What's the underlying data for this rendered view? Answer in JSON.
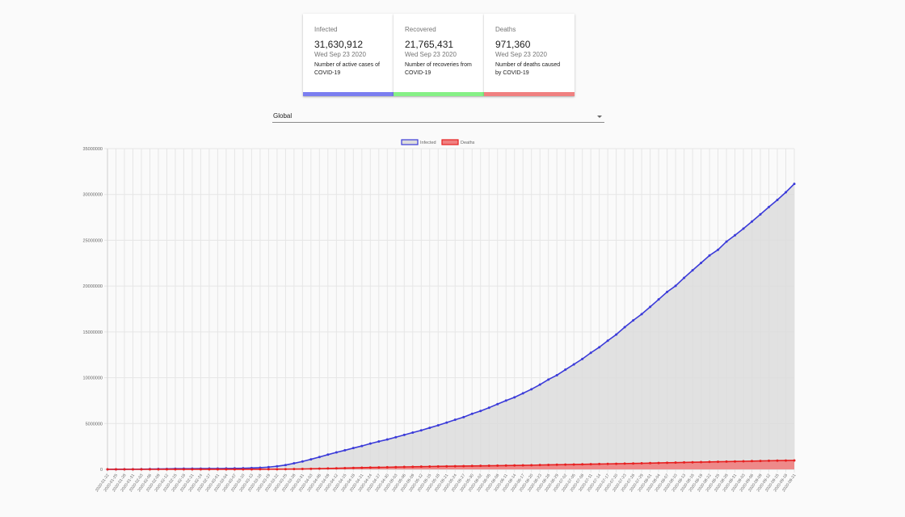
{
  "cards": [
    {
      "label": "Infected",
      "value": "31,630,912",
      "date": "Wed Sep 23 2020",
      "desc": "Number of active cases of COVID-19",
      "color": "#7b7ef0"
    },
    {
      "label": "Recovered",
      "value": "21,765,431",
      "date": "Wed Sep 23 2020",
      "desc": "Number of recoveries from COVID-19",
      "color": "#86f086"
    },
    {
      "label": "Deaths",
      "value": "971,360",
      "date": "Wed Sep 23 2020",
      "desc": "Number of deaths caused by COVID-19",
      "color": "#f08080"
    }
  ],
  "country_select": {
    "value": "Global",
    "icon": "chevron-down-icon"
  },
  "chart_data": {
    "type": "line",
    "title": "",
    "xlabel": "",
    "ylabel": "",
    "ylim": [
      0,
      35000000
    ],
    "y_ticks": [
      "0",
      "5000000",
      "10000000",
      "15000000",
      "20000000",
      "25000000",
      "30000000",
      "35000000"
    ],
    "x_ticks": [
      "2020-01-22",
      "2020-01-25",
      "2020-01-28",
      "2020-01-31",
      "2020-02-03",
      "2020-02-06",
      "2020-02-09",
      "2020-02-12",
      "2020-02-15",
      "2020-02-18",
      "2020-02-21",
      "2020-02-24",
      "2020-02-27",
      "2020-03-01",
      "2020-03-04",
      "2020-03-07",
      "2020-03-10",
      "2020-03-13",
      "2020-03-16",
      "2020-03-19",
      "2020-03-22",
      "2020-03-25",
      "2020-03-28",
      "2020-03-31",
      "2020-04-03",
      "2020-04-06",
      "2020-04-09",
      "2020-04-12",
      "2020-04-15",
      "2020-04-18",
      "2020-04-21",
      "2020-04-24",
      "2020-04-27",
      "2020-04-30",
      "2020-05-03",
      "2020-05-06",
      "2020-05-09",
      "2020-05-12",
      "2020-05-15",
      "2020-05-18",
      "2020-05-21",
      "2020-05-24",
      "2020-05-27",
      "2020-05-30",
      "2020-06-02",
      "2020-06-05",
      "2020-06-08",
      "2020-06-11",
      "2020-06-14",
      "2020-06-17",
      "2020-06-20",
      "2020-06-23",
      "2020-06-26",
      "2020-06-29",
      "2020-07-02",
      "2020-07-05",
      "2020-07-08",
      "2020-07-11",
      "2020-07-14",
      "2020-07-17",
      "2020-07-20",
      "2020-07-23",
      "2020-07-26",
      "2020-07-29",
      "2020-08-01",
      "2020-08-04",
      "2020-08-07",
      "2020-08-10",
      "2020-08-13",
      "2020-08-16",
      "2020-08-19",
      "2020-08-22",
      "2020-08-25",
      "2020-08-28",
      "2020-08-31",
      "2020-09-03",
      "2020-09-06",
      "2020-09-09",
      "2020-09-12",
      "2020-09-15",
      "2020-09-18",
      "2020-09-21"
    ],
    "grid": true,
    "legend": "top-center",
    "series": [
      {
        "name": "Infected",
        "color": "#3b3bd9",
        "fill": "#dcdcdc",
        "values": [
          555,
          2118,
          5578,
          9927,
          19880,
          30817,
          40150,
          45221,
          68410,
          75652,
          76843,
          79579,
          83110,
          88368,
          95120,
          105824,
          118592,
          145205,
          181546,
          242713,
          335955,
          467653,
          657588,
          857487,
          1095917,
          1345101,
          1604843,
          1853120,
          2078605,
          2320221,
          2549294,
          2811193,
          3041764,
          3256846,
          3506729,
          3759967,
          4012771,
          4255655,
          4534731,
          4801943,
          5102424,
          5407613,
          5697334,
          6057853,
          6365173,
          6727545,
          7122953,
          7506983,
          7856957,
          8295096,
          8743947,
          9240946,
          9802394,
          10274489,
          10874148,
          11454847,
          12044836,
          12717860,
          13325126,
          14043176,
          14714489,
          15512227,
          16254925,
          16937279,
          17729694,
          18541964,
          19359022,
          20027026,
          20899081,
          21720283,
          22523167,
          23342006,
          23960219,
          24854310,
          25541380,
          26272600,
          27043170,
          27825850,
          28631310,
          29403290,
          30240090,
          31155000
        ]
      },
      {
        "name": "Deaths",
        "color": "#e62020",
        "fill": "#f08080",
        "values": [
          17,
          56,
          133,
          213,
          427,
          636,
          909,
          1115,
          1526,
          2007,
          2251,
          2630,
          2814,
          3086,
          3347,
          3558,
          4262,
          5403,
          7138,
          11290,
          14755,
          21304,
          30856,
          42102,
          58793,
          74654,
          95693,
          114254,
          134125,
          157570,
          177557,
          203153,
          212261,
          231716,
          245101,
          263727,
          279005,
          293050,
          309153,
          322375,
          336054,
          347136,
          357688,
          370718,
          380329,
          392000,
          403660,
          415230,
          426800,
          438800,
          451100,
          473400,
          489400,
          502300,
          518500,
          531600,
          549100,
          563200,
          579400,
          596200,
          611500,
          628900,
          644400,
          661000,
          681700,
          699500,
          718000,
          735800,
          756000,
          773900,
          789600,
          810000,
          827700,
          843800,
          862700,
          881100,
          899600,
          917500,
          936100,
          951800,
          962500,
          971360
        ]
      }
    ]
  }
}
